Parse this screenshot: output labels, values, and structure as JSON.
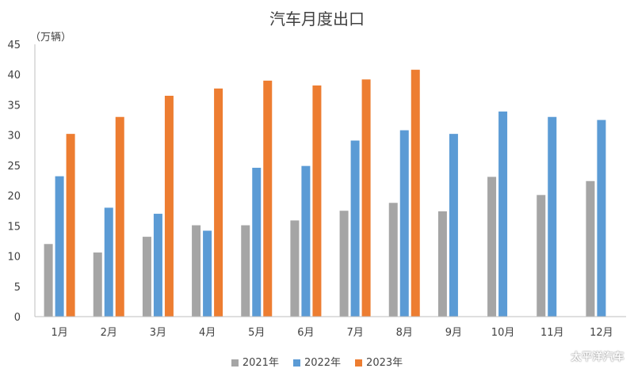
{
  "chart_data": {
    "type": "bar",
    "title": "汽车月度出口",
    "ylabel": "（万辆）",
    "xlabel": "",
    "ylim": [
      0,
      45
    ],
    "y_ticks": [
      0,
      5,
      10,
      15,
      20,
      25,
      30,
      35,
      40,
      45
    ],
    "grid": false,
    "legend_position": "bottom",
    "categories": [
      "1月",
      "2月",
      "3月",
      "4月",
      "5月",
      "6月",
      "7月",
      "8月",
      "9月",
      "10月",
      "11月",
      "12月"
    ],
    "series": [
      {
        "name": "2021年",
        "color": "#a5a5a5",
        "values": [
          12.0,
          10.6,
          13.2,
          15.1,
          15.1,
          15.9,
          17.5,
          18.8,
          17.4,
          23.1,
          20.1,
          22.4
        ]
      },
      {
        "name": "2022年",
        "color": "#5b9bd5",
        "values": [
          23.2,
          18.0,
          17.0,
          14.2,
          24.6,
          24.9,
          29.1,
          30.8,
          30.2,
          33.9,
          33.0,
          32.5
        ]
      },
      {
        "name": "2023年",
        "color": "#ed7d31",
        "values": [
          30.2,
          33.0,
          36.5,
          37.7,
          39.0,
          38.2,
          39.2,
          40.8,
          null,
          null,
          null,
          null
        ]
      }
    ]
  },
  "watermark": "太平洋汽车"
}
